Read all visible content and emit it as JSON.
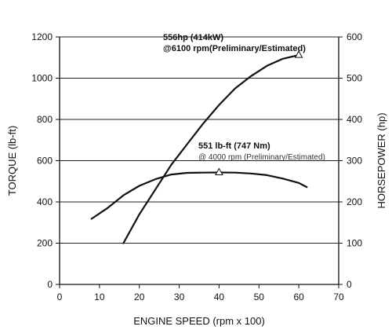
{
  "chart_data": {
    "type": "line",
    "xlabel": "ENGINE SPEED (rpm x 100)",
    "ylabel": "TORQUE (lb-ft)",
    "y2label": "HORSEPOWER (hp)",
    "xlim": [
      0,
      70
    ],
    "ylim": [
      0,
      1200
    ],
    "y2lim": [
      0,
      600
    ],
    "xticks": [
      "0",
      "10",
      "20",
      "30",
      "40",
      "50",
      "60",
      "70"
    ],
    "yticks": [
      "0",
      "200",
      "400",
      "600",
      "800",
      "1000",
      "1200"
    ],
    "y2ticks": [
      "0",
      "100",
      "200",
      "300",
      "400",
      "500",
      "600"
    ],
    "grid": "horizontal",
    "series": [
      {
        "axis": "left",
        "x": [
          8,
          12,
          16,
          20,
          24,
          28,
          32,
          36,
          40,
          44,
          48,
          52,
          56,
          60,
          62
        ],
        "values": [
          318,
          370,
          432,
          478,
          510,
          533,
          541,
          542,
          543,
          542,
          538,
          530,
          513,
          492,
          472
        ],
        "peak": {
          "x": 40,
          "y": 551
        },
        "annotation": {
          "line1": "551 lb-ft (747 Nm)",
          "line2": "@ 4000 rpm (Preliminary/Estimated)"
        }
      },
      {
        "axis": "right",
        "x": [
          16,
          20,
          24,
          28,
          32,
          36,
          40,
          44,
          48,
          52,
          56,
          60
        ],
        "values": [
          100,
          170,
          230,
          290,
          340,
          390,
          435,
          475,
          505,
          530,
          547,
          556
        ],
        "peak": {
          "x": 60,
          "y": 556
        },
        "annotation": {
          "line1": "556hp (414kW)",
          "line2": "@6100 rpm(Preliminary/Estimated)"
        }
      }
    ]
  }
}
